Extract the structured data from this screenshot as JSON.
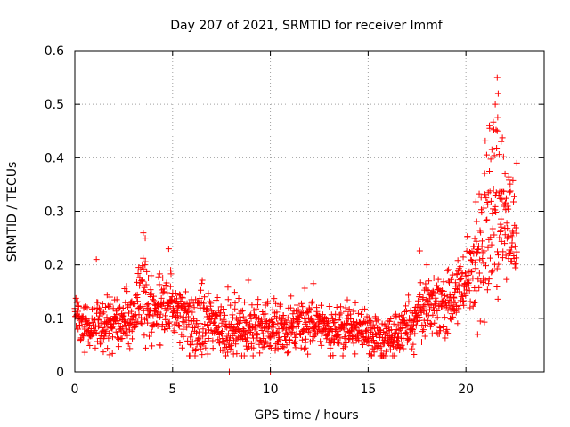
{
  "chart_data": {
    "type": "scatter",
    "title": "Day 207 of 2021, SRMTID for receiver lmmf",
    "xlabel": "GPS time / hours",
    "ylabel": "SRMTID / TECUs",
    "xlim": [
      0,
      24
    ],
    "ylim": [
      0,
      0.6
    ],
    "xticks": [
      0,
      5,
      10,
      15,
      20
    ],
    "xtick_labels": [
      "0",
      "5",
      "10",
      "15",
      "20"
    ],
    "yticks": [
      0,
      0.1,
      0.2,
      0.3,
      0.4,
      0.5,
      0.6
    ],
    "ytick_labels": [
      "0",
      "0.1",
      "0.2",
      "0.3",
      "0.4",
      "0.5",
      "0.6"
    ],
    "grid": true,
    "marker": "+",
    "color": "#ff0000",
    "trend": {
      "x": [
        0,
        0.3,
        1,
        2,
        3,
        3.5,
        4,
        5,
        6,
        7,
        8,
        9,
        10,
        11,
        12,
        13,
        14,
        15,
        16,
        17,
        17.5,
        18,
        19,
        19.5,
        20,
        20.5,
        21,
        21.5,
        22,
        22.5
      ],
      "y": [
        0.12,
        0.09,
        0.08,
        0.09,
        0.1,
        0.16,
        0.11,
        0.12,
        0.09,
        0.08,
        0.08,
        0.08,
        0.08,
        0.08,
        0.09,
        0.08,
        0.08,
        0.07,
        0.06,
        0.08,
        0.1,
        0.13,
        0.12,
        0.15,
        0.17,
        0.2,
        0.26,
        0.3,
        0.28,
        0.24
      ]
    },
    "spread": {
      "x": [
        0,
        3,
        3.5,
        4,
        5,
        15,
        17,
        18,
        19,
        20,
        21,
        21.5,
        22,
        22.5
      ],
      "y": [
        0.03,
        0.03,
        0.06,
        0.04,
        0.04,
        0.025,
        0.03,
        0.04,
        0.04,
        0.04,
        0.09,
        0.12,
        0.08,
        0.06
      ]
    },
    "peaks": [
      {
        "x": 1.1,
        "y": 0.21
      },
      {
        "x": 3.5,
        "y": 0.26
      },
      {
        "x": 3.6,
        "y": 0.25
      },
      {
        "x": 4.8,
        "y": 0.23
      },
      {
        "x": 4.9,
        "y": 0.19
      },
      {
        "x": 7.9,
        "y": 0.0
      },
      {
        "x": 10.0,
        "y": 0.0
      },
      {
        "x": 12.2,
        "y": 0.165
      },
      {
        "x": 18.0,
        "y": 0.2
      },
      {
        "x": 20.6,
        "y": 0.07
      },
      {
        "x": 21.2,
        "y": 0.46
      },
      {
        "x": 21.5,
        "y": 0.5
      },
      {
        "x": 21.6,
        "y": 0.55
      },
      {
        "x": 21.65,
        "y": 0.52
      },
      {
        "x": 21.6,
        "y": 0.45
      },
      {
        "x": 21.8,
        "y": 0.43
      },
      {
        "x": 22.0,
        "y": 0.37
      },
      {
        "x": 22.6,
        "y": 0.39
      }
    ],
    "n_points": 1600
  }
}
